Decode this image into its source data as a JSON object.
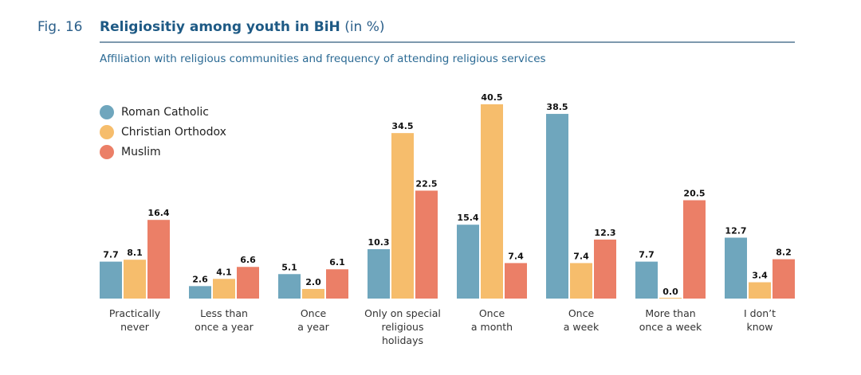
{
  "figure": {
    "number": "Fig. 16",
    "title_bold": "Religiositiy among youth in BiH",
    "title_unit": "(in %)",
    "subtitle": "Affiliation with religious communities and frequency of attending religious services"
  },
  "colors": {
    "roman_catholic": "#6fa6bd",
    "christian_orthodox": "#f6bd6c",
    "muslim": "#eb7f67",
    "title": "#1e5a85",
    "rule": "#7d99ad"
  },
  "chart_data": {
    "type": "bar",
    "title": "Religiositiy among youth in BiH (in %)",
    "subtitle": "Affiliation with religious communities and frequency of attending religious services",
    "xlabel": "",
    "ylabel": "",
    "ylim": [
      0,
      40.5
    ],
    "grid": false,
    "legend_position": "top-left",
    "categories": [
      [
        "Practically",
        "never"
      ],
      [
        "Less than",
        "once a year"
      ],
      [
        "Once",
        "a year"
      ],
      [
        "Only on special",
        "religious",
        "holidays"
      ],
      [
        "Once",
        "a month"
      ],
      [
        "Once",
        "a week"
      ],
      [
        "More than",
        "once a week"
      ],
      [
        "I don’t",
        "know"
      ]
    ],
    "series": [
      {
        "name": "Roman Catholic",
        "color": "#6fa6bd",
        "values": [
          7.7,
          2.6,
          5.1,
          10.3,
          15.4,
          38.5,
          7.7,
          12.7
        ]
      },
      {
        "name": "Christian Orthodox",
        "color": "#f6bd6c",
        "values": [
          8.1,
          4.1,
          2.0,
          34.5,
          40.5,
          7.4,
          0.0,
          3.4
        ]
      },
      {
        "name": "Muslim",
        "color": "#eb7f67",
        "values": [
          16.4,
          6.6,
          6.1,
          22.5,
          7.4,
          12.3,
          20.5,
          8.2
        ]
      }
    ]
  }
}
